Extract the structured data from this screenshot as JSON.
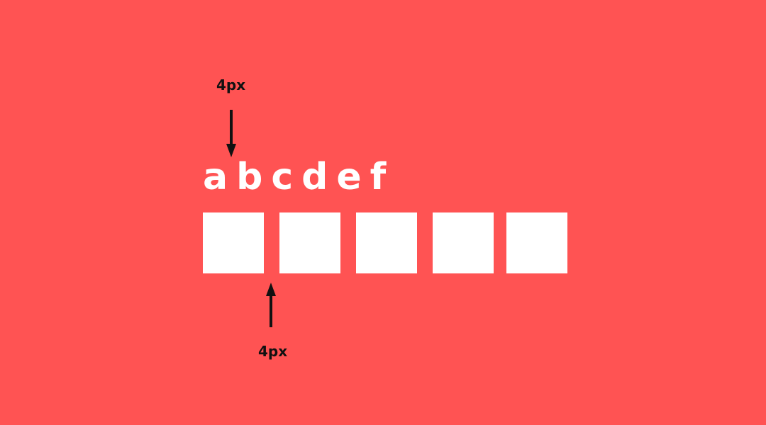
{
  "colors": {
    "background": "#ff5353",
    "shape_fill": "#ffffff",
    "annotation": "#111111"
  },
  "annotations": {
    "top_label": "4px",
    "bottom_label": "4px"
  },
  "letters": [
    "a",
    "b",
    "c",
    "d",
    "e",
    "f"
  ],
  "boxes": [
    {
      "name": "box-1"
    },
    {
      "name": "box-2"
    },
    {
      "name": "box-3"
    },
    {
      "name": "box-4"
    },
    {
      "name": "box-5"
    }
  ]
}
